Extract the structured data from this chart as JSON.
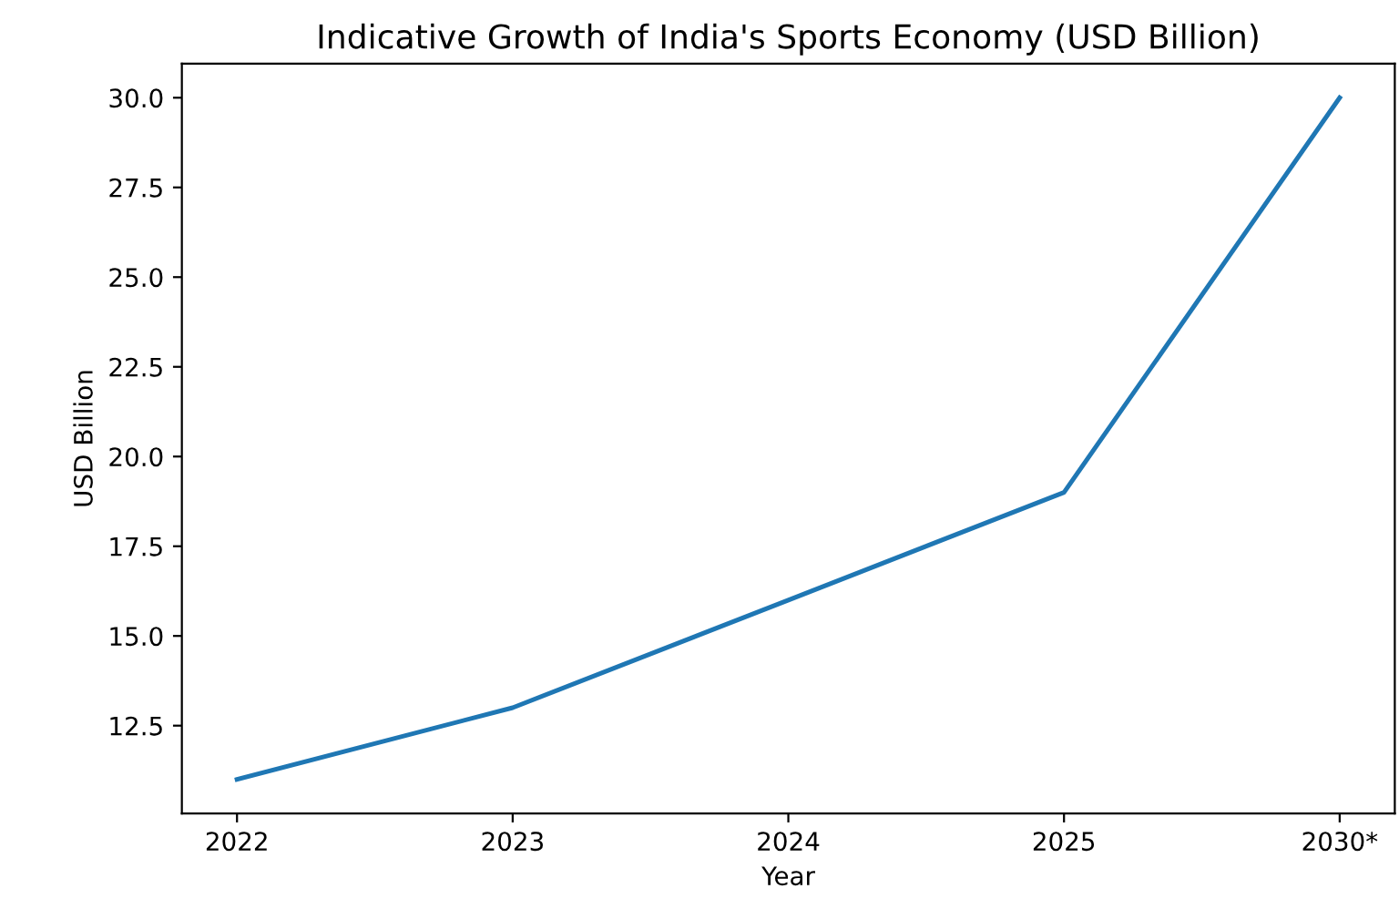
{
  "chart_data": {
    "type": "line",
    "title": "Indicative Growth of India's Sports Economy (USD Billion)",
    "xlabel": "Year",
    "ylabel": "USD Billion",
    "categories": [
      "2022",
      "2023",
      "2024",
      "2025",
      "2030*"
    ],
    "series": [
      {
        "color": "#1f77b4",
        "values": [
          11,
          13,
          16,
          19,
          30
        ]
      }
    ],
    "ylim": [
      10.05,
      30.95
    ],
    "yticks": [
      {
        "value": 12.5,
        "label": "12.5"
      },
      {
        "value": 15,
        "label": "15.0"
      },
      {
        "value": 17.5,
        "label": "17.5"
      },
      {
        "value": 20,
        "label": "20.0"
      },
      {
        "value": 22.5,
        "label": "22.5"
      },
      {
        "value": 25,
        "label": "25.0"
      },
      {
        "value": 27.5,
        "label": "27.5"
      },
      {
        "value": 30,
        "label": "30.0"
      }
    ],
    "grid": false,
    "legend": false
  }
}
